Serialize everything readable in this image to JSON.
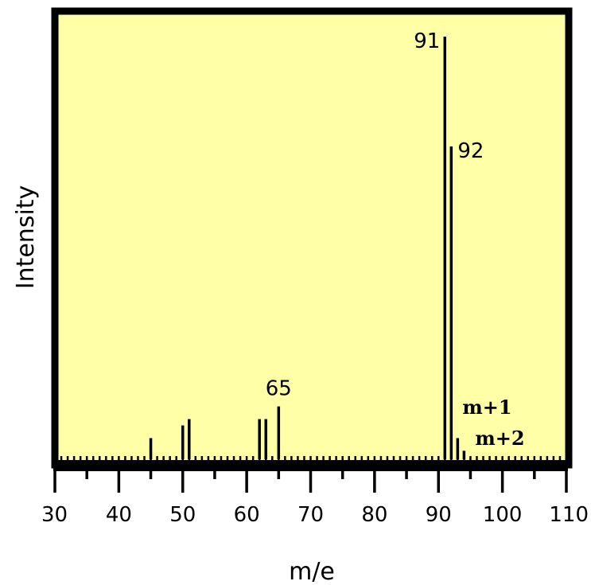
{
  "colors": {
    "plot_background": "#ffffa8",
    "frame": "#000000",
    "peaks": "#000000"
  },
  "chart_data": {
    "type": "bar",
    "title": "",
    "xlabel": "m/e",
    "ylabel": "Intensity",
    "xlim": [
      30,
      110
    ],
    "ylim": [
      0,
      100
    ],
    "x_ticks": [
      30,
      40,
      50,
      60,
      70,
      80,
      90,
      100,
      110
    ],
    "minor_tick_step": 5,
    "grid": false,
    "legend": "none",
    "peaks": [
      {
        "mz": 45,
        "intensity": 5
      },
      {
        "mz": 50,
        "intensity": 8
      },
      {
        "mz": 51,
        "intensity": 9.5
      },
      {
        "mz": 62,
        "intensity": 9.5
      },
      {
        "mz": 63,
        "intensity": 9.5
      },
      {
        "mz": 65,
        "intensity": 12.5
      },
      {
        "mz": 91,
        "intensity": 100
      },
      {
        "mz": 92,
        "intensity": 74
      },
      {
        "mz": 93,
        "intensity": 5
      },
      {
        "mz": 94,
        "intensity": 2
      }
    ],
    "peak_labels": [
      {
        "mz": 65,
        "text": "65"
      },
      {
        "mz": 91,
        "text": "91"
      },
      {
        "mz": 92,
        "text": "92"
      }
    ],
    "annotations": [
      {
        "mz": 93,
        "text": "m+1"
      },
      {
        "mz": 94,
        "text": "m+2"
      }
    ]
  }
}
